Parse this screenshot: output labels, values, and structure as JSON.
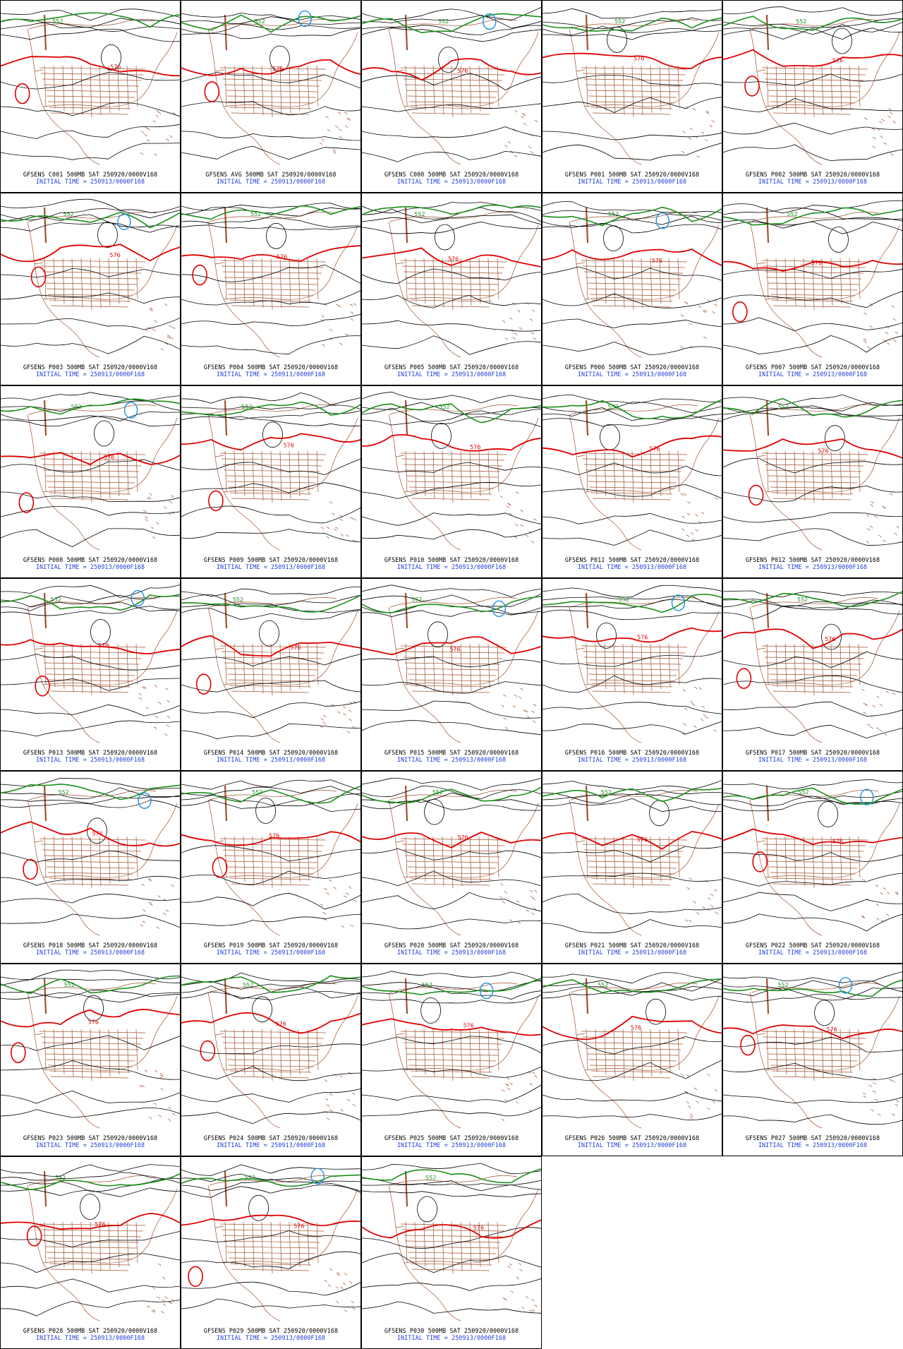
{
  "colors": {
    "contour_black": "#000000",
    "contour_576": "#e00000",
    "contour_552": "#1a8f1a",
    "contour_528": "#1e90e0",
    "map_outline": "#a0522d",
    "caption_top": "#000000",
    "caption_bottom": "#1f3fd6"
  },
  "caption": {
    "level_label": "500MB",
    "valid_label": "SAT 250920/0000V168",
    "initial_label": "INITIAL TIME = 250913/0000F168"
  },
  "panels": [
    {
      "member": "GFSENS C001"
    },
    {
      "member": "GFSENS AVG"
    },
    {
      "member": "GFSENS C000"
    },
    {
      "member": "GFSENS P001"
    },
    {
      "member": "GFSENS P002"
    },
    {
      "member": "GFSENS P003"
    },
    {
      "member": "GFSENS P004"
    },
    {
      "member": "GFSENS P005"
    },
    {
      "member": "GFSENS P006"
    },
    {
      "member": "GFSENS P007"
    },
    {
      "member": "GFSENS P008"
    },
    {
      "member": "GFSENS P009"
    },
    {
      "member": "GFSENS P010"
    },
    {
      "member": "GFSENS P011"
    },
    {
      "member": "GFSENS P012"
    },
    {
      "member": "GFSENS P013"
    },
    {
      "member": "GFSENS P014"
    },
    {
      "member": "GFSENS P015"
    },
    {
      "member": "GFSENS P016"
    },
    {
      "member": "GFSENS P017"
    },
    {
      "member": "GFSENS P018"
    },
    {
      "member": "GFSENS P019"
    },
    {
      "member": "GFSENS P020"
    },
    {
      "member": "GFSENS P021"
    },
    {
      "member": "GFSENS P022"
    },
    {
      "member": "GFSENS P023"
    },
    {
      "member": "GFSENS P024"
    },
    {
      "member": "GFSENS P025"
    },
    {
      "member": "GFSENS P026"
    },
    {
      "member": "GFSENS P027"
    },
    {
      "member": "GFSENS P028"
    },
    {
      "member": "GFSENS P029"
    },
    {
      "member": "GFSENS P030"
    }
  ],
  "contour_labels": {
    "red": "576",
    "green": "552",
    "blue": "528"
  }
}
